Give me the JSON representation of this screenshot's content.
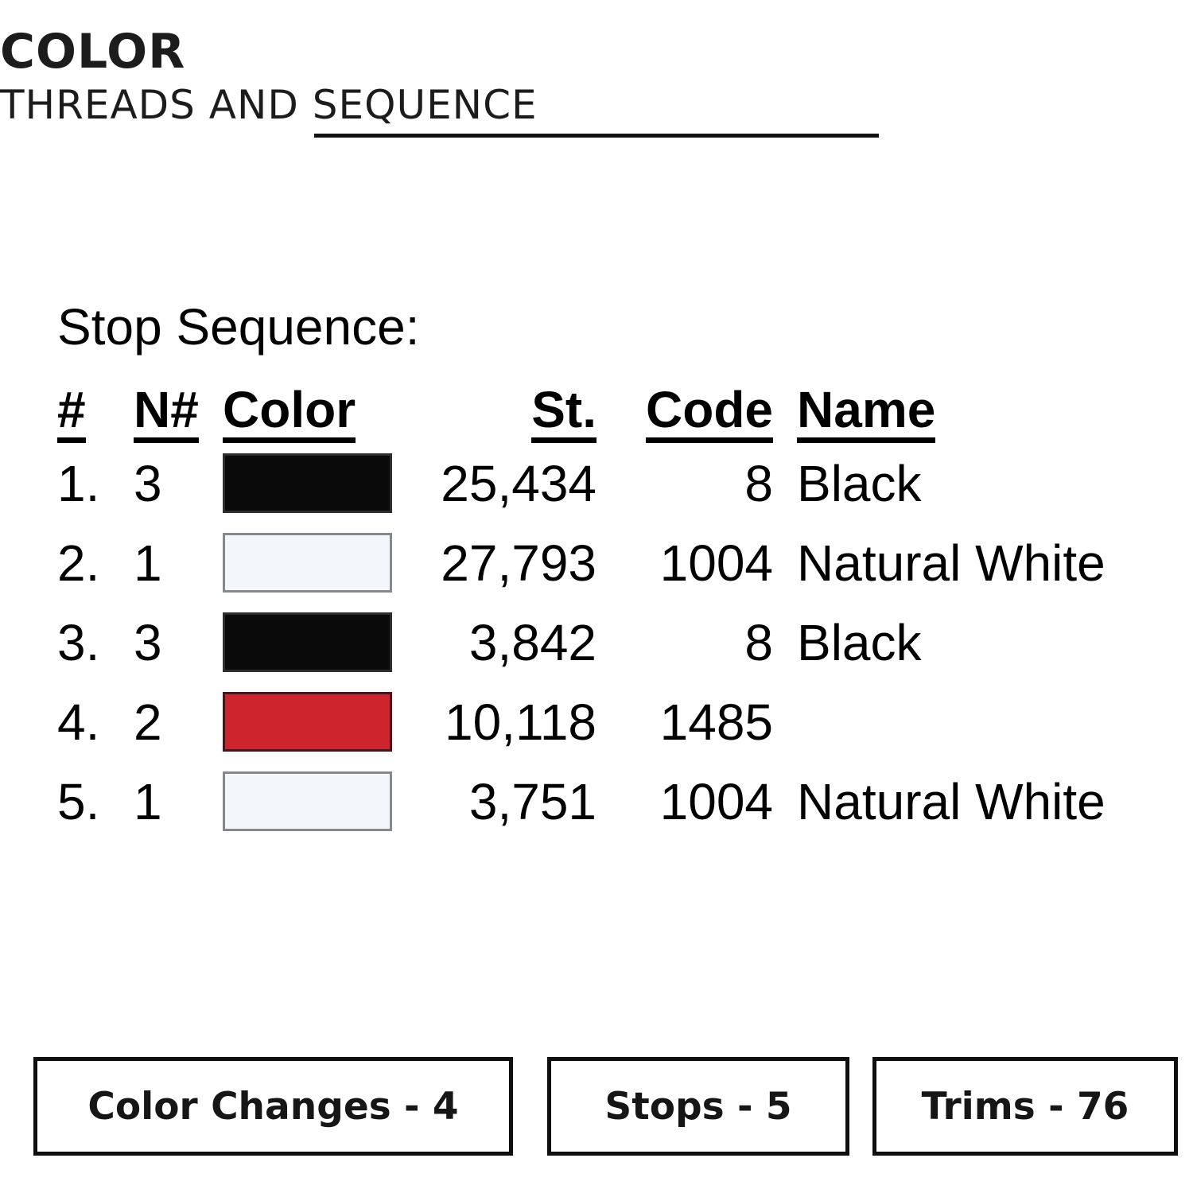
{
  "header": {
    "title": "COLOR",
    "subtitle": "THREADS AND SEQUENCE"
  },
  "stop_sequence": {
    "heading": "Stop Sequence:",
    "columns": [
      "#",
      "N#",
      "Color",
      "St.",
      "Code",
      "Name"
    ],
    "rows": [
      {
        "num": "1.",
        "n": "3",
        "swatch": "black",
        "fill": "#0a0a0a",
        "border": "#2e2e2e",
        "st": "25,434",
        "code": "8",
        "name": "Black"
      },
      {
        "num": "2.",
        "n": "1",
        "swatch": "natural-white",
        "fill": "#f3f7fb",
        "border": "#85898d",
        "st": "27,793",
        "code": "1004",
        "name": "Natural White"
      },
      {
        "num": "3.",
        "n": "3",
        "swatch": "black",
        "fill": "#0a0a0a",
        "border": "#2e2e2e",
        "st": "3,842",
        "code": "8",
        "name": "Black"
      },
      {
        "num": "4.",
        "n": "2",
        "swatch": "red",
        "fill": "#ce242d",
        "border": "#4a141a",
        "st": "10,118",
        "code": "1485",
        "name": ""
      },
      {
        "num": "5.",
        "n": "1",
        "swatch": "natural-white",
        "fill": "#f3f7fb",
        "border": "#85898d",
        "st": "3,751",
        "code": "1004",
        "name": "Natural White"
      }
    ]
  },
  "footer": {
    "boxes": [
      {
        "label": "Color Changes - 4"
      },
      {
        "label": "Stops - 5"
      },
      {
        "label": "Trims - 76"
      }
    ]
  }
}
